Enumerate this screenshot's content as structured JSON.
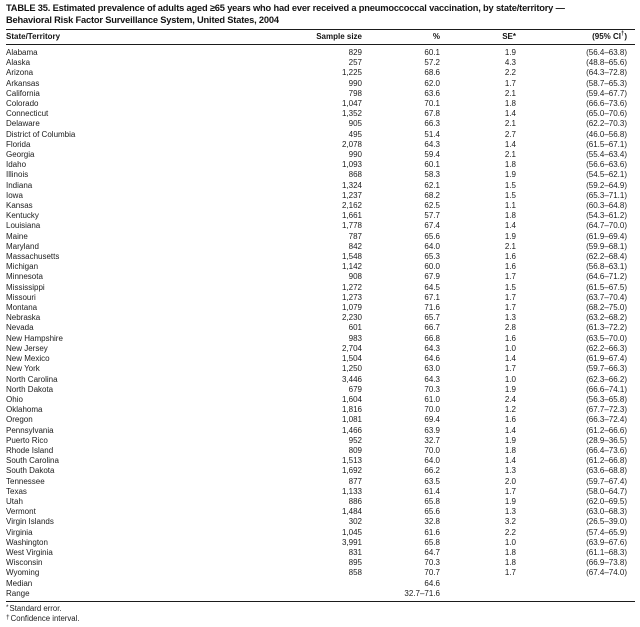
{
  "title": {
    "line1": "TABLE 35. Estimated prevalence of adults aged ≥65 years who had ever received a pneumoccoccal vaccination, by state/territory —",
    "line2": "Behavioral Risk Factor Surveillance System, United States, 2004"
  },
  "table": {
    "columns": [
      {
        "label": "State/Territory",
        "key": "state"
      },
      {
        "label": "Sample size",
        "key": "sample-size"
      },
      {
        "label": "%",
        "key": "percent"
      },
      {
        "label": "SE*",
        "key": "se"
      },
      {
        "label": "(95% CI",
        "sup": "†",
        "post": ")",
        "key": "ci"
      }
    ],
    "rows": [
      [
        "Alabama",
        "829",
        "60.1",
        "1.9",
        "(56.4–63.8)"
      ],
      [
        "Alaska",
        "257",
        "57.2",
        "4.3",
        "(48.8–65.6)"
      ],
      [
        "Arizona",
        "1,225",
        "68.6",
        "2.2",
        "(64.3–72.8)"
      ],
      [
        "Arkansas",
        "990",
        "62.0",
        "1.7",
        "(58.7–65.3)"
      ],
      [
        "California",
        "798",
        "63.6",
        "2.1",
        "(59.4–67.7)"
      ],
      [
        "Colorado",
        "1,047",
        "70.1",
        "1.8",
        "(66.6–73.6)"
      ],
      [
        "Connecticut",
        "1,352",
        "67.8",
        "1.4",
        "(65.0–70.6)"
      ],
      [
        "Delaware",
        "905",
        "66.3",
        "2.1",
        "(62.2–70.3)"
      ],
      [
        "District of Columbia",
        "495",
        "51.4",
        "2.7",
        "(46.0–56.8)"
      ],
      [
        "Florida",
        "2,078",
        "64.3",
        "1.4",
        "(61.5–67.1)"
      ],
      [
        "Georgia",
        "990",
        "59.4",
        "2.1",
        "(55.4–63.4)"
      ],
      [
        "Idaho",
        "1,093",
        "60.1",
        "1.8",
        "(56.6–63.6)"
      ],
      [
        "Illinois",
        "868",
        "58.3",
        "1.9",
        "(54.5–62.1)"
      ],
      [
        "Indiana",
        "1,324",
        "62.1",
        "1.5",
        "(59.2–64.9)"
      ],
      [
        "Iowa",
        "1,237",
        "68.2",
        "1.5",
        "(65.3–71.1)"
      ],
      [
        "Kansas",
        "2,162",
        "62.5",
        "1.1",
        "(60.3–64.8)"
      ],
      [
        "Kentucky",
        "1,661",
        "57.7",
        "1.8",
        "(54.3–61.2)"
      ],
      [
        "Louisiana",
        "1,778",
        "67.4",
        "1.4",
        "(64.7–70.0)"
      ],
      [
        "Maine",
        "787",
        "65.6",
        "1.9",
        "(61.9–69.4)"
      ],
      [
        "Maryland",
        "842",
        "64.0",
        "2.1",
        "(59.9–68.1)"
      ],
      [
        "Massachusetts",
        "1,548",
        "65.3",
        "1.6",
        "(62.2–68.4)"
      ],
      [
        "Michigan",
        "1,142",
        "60.0",
        "1.6",
        "(56.8–63.1)"
      ],
      [
        "Minnesota",
        "908",
        "67.9",
        "1.7",
        "(64.6–71.2)"
      ],
      [
        "Mississippi",
        "1,272",
        "64.5",
        "1.5",
        "(61.5–67.5)"
      ],
      [
        "Missouri",
        "1,273",
        "67.1",
        "1.7",
        "(63.7–70.4)"
      ],
      [
        "Montana",
        "1,079",
        "71.6",
        "1.7",
        "(68.2–75.0)"
      ],
      [
        "Nebraska",
        "2,230",
        "65.7",
        "1.3",
        "(63.2–68.2)"
      ],
      [
        "Nevada",
        "601",
        "66.7",
        "2.8",
        "(61.3–72.2)"
      ],
      [
        "New Hampshire",
        "983",
        "66.8",
        "1.6",
        "(63.5–70.0)"
      ],
      [
        "New Jersey",
        "2,704",
        "64.3",
        "1.0",
        "(62.2–66.3)"
      ],
      [
        "New Mexico",
        "1,504",
        "64.6",
        "1.4",
        "(61.9–67.4)"
      ],
      [
        "New York",
        "1,250",
        "63.0",
        "1.7",
        "(59.7–66.3)"
      ],
      [
        "North Carolina",
        "3,446",
        "64.3",
        "1.0",
        "(62.3–66.2)"
      ],
      [
        "North Dakota",
        "679",
        "70.3",
        "1.9",
        "(66.6–74.1)"
      ],
      [
        "Ohio",
        "1,604",
        "61.0",
        "2.4",
        "(56.3–65.8)"
      ],
      [
        "Oklahoma",
        "1,816",
        "70.0",
        "1.2",
        "(67.7–72.3)"
      ],
      [
        "Oregon",
        "1,081",
        "69.4",
        "1.6",
        "(66.3–72.4)"
      ],
      [
        "Pennsylvania",
        "1,466",
        "63.9",
        "1.4",
        "(61.2–66.6)"
      ],
      [
        "Puerto Rico",
        "952",
        "32.7",
        "1.9",
        "(28.9–36.5)"
      ],
      [
        "Rhode Island",
        "809",
        "70.0",
        "1.8",
        "(66.4–73.6)"
      ],
      [
        "South Carolina",
        "1,513",
        "64.0",
        "1.4",
        "(61.2–66.8)"
      ],
      [
        "South Dakota",
        "1,692",
        "66.2",
        "1.3",
        "(63.6–68.8)"
      ],
      [
        "Tennessee",
        "877",
        "63.5",
        "2.0",
        "(59.7–67.4)"
      ],
      [
        "Texas",
        "1,133",
        "61.4",
        "1.7",
        "(58.0–64.7)"
      ],
      [
        "Utah",
        "886",
        "65.8",
        "1.9",
        "(62.0–69.5)"
      ],
      [
        "Vermont",
        "1,484",
        "65.6",
        "1.3",
        "(63.0–68.3)"
      ],
      [
        "Virgin Islands",
        "302",
        "32.8",
        "3.2",
        "(26.5–39.0)"
      ],
      [
        "Virginia",
        "1,045",
        "61.6",
        "2.2",
        "(57.4–65.9)"
      ],
      [
        "Washington",
        "3,991",
        "65.8",
        "1.0",
        "(63.9–67.6)"
      ],
      [
        "West Virginia",
        "831",
        "64.7",
        "1.8",
        "(61.1–68.3)"
      ],
      [
        "Wisconsin",
        "895",
        "70.3",
        "1.8",
        "(66.9–73.8)"
      ],
      [
        "Wyoming",
        "858",
        "70.7",
        "1.7",
        "(67.4–74.0)"
      ],
      [
        "Median",
        "",
        "64.6",
        "",
        ""
      ],
      [
        "Range",
        "",
        "32.7–71.6",
        "",
        ""
      ]
    ]
  },
  "footnotes": [
    {
      "marker": "*",
      "text": "Standard error."
    },
    {
      "marker": "†",
      "text": "Confidence interval."
    }
  ]
}
